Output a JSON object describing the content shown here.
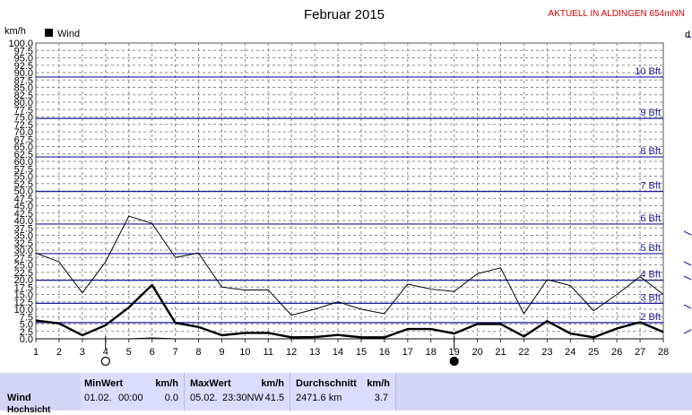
{
  "header": {
    "title": "Februar 2015",
    "status": "AKTUELL IN ALDINGEN 654mNN",
    "unit": "km/h",
    "right_letter": "d"
  },
  "legend": {
    "label": "Wind"
  },
  "chart_data": {
    "type": "line",
    "ylabel": "km/h",
    "ylim": [
      0,
      100
    ],
    "xlim": [
      1,
      28
    ],
    "y_ticks": [
      "0.0",
      "2.5",
      "5.0",
      "7.5",
      "10.0",
      "12.5",
      "15.0",
      "17.5",
      "20.0",
      "22.5",
      "25.0",
      "27.5",
      "30.0",
      "32.5",
      "35.0",
      "37.5",
      "40.0",
      "42.5",
      "45.0",
      "47.5",
      "50.0",
      "52.5",
      "55.0",
      "57.5",
      "60.0",
      "62.5",
      "65.0",
      "67.5",
      "70.0",
      "72.5",
      "75.0",
      "77.5",
      "80.0",
      "82.5",
      "85.0",
      "87.5",
      "90.0",
      "92.5",
      "95.0",
      "97.5",
      "100.0"
    ],
    "x_ticks": [
      "1",
      "2",
      "3",
      "4",
      "5",
      "6",
      "7",
      "8",
      "9",
      "10",
      "11",
      "12",
      "13",
      "14",
      "15",
      "16",
      "17",
      "18",
      "19",
      "20",
      "21",
      "22",
      "23",
      "24",
      "25",
      "26",
      "27",
      "28"
    ],
    "x": [
      1,
      2,
      3,
      4,
      5,
      6,
      7,
      8,
      9,
      10,
      11,
      12,
      13,
      14,
      15,
      16,
      17,
      18,
      19,
      20,
      21,
      22,
      23,
      24,
      25,
      26,
      27,
      28
    ],
    "series": [
      {
        "name": "Wind",
        "values": [
          6.2,
          5.2,
          1.2,
          4.6,
          10.6,
          18.2,
          5.4,
          4.0,
          1.2,
          2.0,
          2.0,
          0.5,
          0.6,
          1.3,
          0.5,
          0.5,
          3.3,
          3.3,
          1.8,
          5.0,
          5.0,
          0.8,
          6.0,
          1.8,
          0.5,
          3.5,
          5.6,
          2.3
        ]
      },
      {
        "values": [
          29,
          26,
          15.5,
          26,
          41.5,
          39,
          27.5,
          29,
          17.5,
          16.5,
          16.5,
          8,
          10,
          12.5,
          10,
          8.5,
          18.5,
          16.8,
          16,
          22,
          24,
          8.5,
          20,
          18,
          9.5,
          15,
          21,
          15
        ]
      },
      {
        "values": [
          0,
          0,
          0,
          0,
          0,
          0.3,
          0,
          0,
          0,
          0,
          0,
          0,
          0,
          0,
          0,
          0,
          0,
          0,
          0,
          0,
          0,
          0,
          0,
          0,
          0,
          0,
          0,
          0
        ]
      }
    ],
    "beaufort": [
      {
        "label": "2 Bft",
        "value": 5.5
      },
      {
        "label": "3 Bft",
        "value": 12
      },
      {
        "label": "4 Bft",
        "value": 19.8
      },
      {
        "label": "5 Bft",
        "value": 28.8
      },
      {
        "label": "6 Bft",
        "value": 38.8
      },
      {
        "label": "7 Bft",
        "value": 49.8
      },
      {
        "label": "8 Bft",
        "value": 61.5
      },
      {
        "label": "9 Bft",
        "value": 74.5
      },
      {
        "label": "10 Bft",
        "value": 88.5
      }
    ],
    "markers": [
      {
        "day": 4,
        "kind": "new-moon-open-circle"
      },
      {
        "day": 19,
        "kind": "full-moon-filled-circle"
      }
    ],
    "grid": true,
    "legend_position": "top-left",
    "colors": {
      "series": "#000000",
      "bft_lines": "#1a1a9a",
      "grid": "#888888"
    }
  },
  "stats": {
    "row_label": "Wind",
    "row_label_2": "Hochsicht",
    "min": {
      "title": "MinWert",
      "unit": "km/h",
      "date": "01.02.",
      "time": "00:00",
      "value": "0.0"
    },
    "max": {
      "title": "MaxWert",
      "unit": "km/h",
      "date": "05.02.",
      "time": "23:30NW",
      "value": "41.5"
    },
    "avg": {
      "title": "Durchschnitt",
      "unit": "km/h",
      "distance": "2471.6 km",
      "value": "3.7"
    }
  }
}
